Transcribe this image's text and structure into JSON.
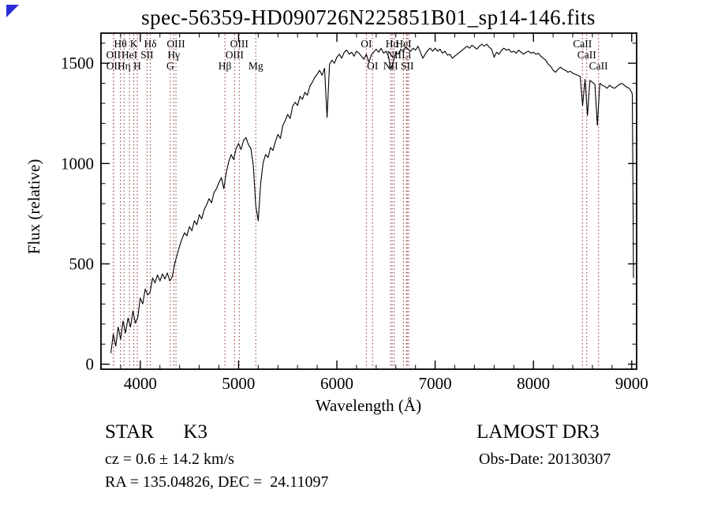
{
  "title": "spec-56359-HD090726N225851B01_sp14-146.fits",
  "corner_marker_color": "#2b2bd8",
  "footer": {
    "class_label": "STAR      K3",
    "cz_line": "cz = 0.6 ± 14.2 km/s",
    "radec_line": "RA = 135.04826, DEC =  24.11097",
    "survey": "LAMOST DR3",
    "obs_date": "Obs-Date: 20130307"
  },
  "chart_data": {
    "type": "line",
    "title": "spec-56359-HD090726N225851B01_sp14-146.fits",
    "xlabel": "Wavelength (Å)",
    "ylabel": "Flux (relative)",
    "xlim": [
      3600,
      9050
    ],
    "ylim": [
      -25,
      1650
    ],
    "x_major_ticks": [
      4000,
      5000,
      6000,
      7000,
      8000,
      9000
    ],
    "x_minor_step": 200,
    "y_major_ticks": [
      0,
      500,
      1000,
      1500
    ],
    "y_minor_step": 100,
    "grid": false,
    "legend": "none",
    "line_color": "#000000",
    "marker_line_color": "#944040",
    "marker_label_color": "#4a1616",
    "spectral_lines": [
      {
        "label": "OII",
        "wavelength": 3727,
        "row": 2
      },
      {
        "label": "OII",
        "wavelength": 3729,
        "row": 3
      },
      {
        "label": "Hθ",
        "wavelength": 3798,
        "row": 1
      },
      {
        "label": "Hη",
        "wavelength": 3835,
        "row": 3
      },
      {
        "label": "HeI",
        "wavelength": 3889,
        "row": 2
      },
      {
        "label": "K",
        "wavelength": 3934,
        "row": 1
      },
      {
        "label": "H",
        "wavelength": 3969,
        "row": 3
      },
      {
        "label": "SII",
        "wavelength": 4069,
        "row": 2
      },
      {
        "label": "Hδ",
        "wavelength": 4102,
        "row": 1
      },
      {
        "label": "G",
        "wavelength": 4305,
        "row": 3
      },
      {
        "label": "Hγ",
        "wavelength": 4340,
        "row": 2
      },
      {
        "label": "OIII",
        "wavelength": 4363,
        "row": 1
      },
      {
        "label": "Hβ",
        "wavelength": 4861,
        "row": 3
      },
      {
        "label": "OIII",
        "wavelength": 4959,
        "row": 2
      },
      {
        "label": "OIII",
        "wavelength": 5007,
        "row": 1
      },
      {
        "label": "Mg",
        "wavelength": 5175,
        "row": 3
      },
      {
        "label": "OI",
        "wavelength": 6300,
        "row": 1
      },
      {
        "label": "OI",
        "wavelength": 6363,
        "row": 3
      },
      {
        "label": "NII",
        "wavelength": 6548,
        "row": 3
      },
      {
        "label": "Hα",
        "wavelength": 6563,
        "row": 1
      },
      {
        "label": "NII",
        "wavelength": 6583,
        "row": 2
      },
      {
        "label": "HeI",
        "wavelength": 6678,
        "row": 1
      },
      {
        "label": "Li",
        "wavelength": 6708,
        "row": 2
      },
      {
        "label": "SII",
        "wavelength": 6716,
        "row": 3
      },
      {
        "label": "",
        "wavelength": 6731,
        "row": 3
      },
      {
        "label": "CaII",
        "wavelength": 8498,
        "row": 1
      },
      {
        "label": "CaII",
        "wavelength": 8542,
        "row": 2
      },
      {
        "label": "CaII",
        "wavelength": 8662,
        "row": 3
      }
    ],
    "series": [
      {
        "name": "flux",
        "x_start": 3700,
        "x_step": 25,
        "values": [
          55,
          150,
          90,
          185,
          125,
          215,
          155,
          230,
          185,
          265,
          205,
          235,
          330,
          300,
          375,
          345,
          360,
          430,
          405,
          445,
          415,
          450,
          425,
          455,
          415,
          435,
          500,
          545,
          590,
          625,
          655,
          640,
          685,
          665,
          715,
          695,
          745,
          725,
          770,
          795,
          825,
          805,
          855,
          875,
          905,
          930,
          875,
          955,
          1010,
          1045,
          1020,
          1075,
          1100,
          1070,
          1115,
          1130,
          1095,
          1075,
          990,
          790,
          715,
          905,
          1005,
          1045,
          1030,
          1080,
          1065,
          1110,
          1145,
          1125,
          1190,
          1215,
          1245,
          1225,
          1285,
          1305,
          1290,
          1335,
          1320,
          1355,
          1340,
          1385,
          1405,
          1430,
          1445,
          1465,
          1440,
          1475,
          1230,
          1495,
          1515,
          1500,
          1530,
          1545,
          1525,
          1555,
          1565,
          1545,
          1555,
          1535,
          1560,
          1550,
          1535,
          1520,
          1545,
          1505,
          1540,
          1555,
          1570,
          1555,
          1575,
          1550,
          1560,
          1535,
          1470,
          1510,
          1555,
          1545,
          1570,
          1560,
          1580,
          1570,
          1560,
          1575,
          1565,
          1585,
          1555,
          1525,
          1545,
          1565,
          1575,
          1560,
          1575,
          1560,
          1570,
          1550,
          1560,
          1540,
          1545,
          1525,
          1535,
          1545,
          1555,
          1565,
          1575,
          1585,
          1575,
          1590,
          1580,
          1570,
          1585,
          1595,
          1585,
          1595,
          1580,
          1570,
          1530,
          1555,
          1545,
          1565,
          1575,
          1565,
          1570,
          1555,
          1560,
          1550,
          1565,
          1555,
          1545,
          1555,
          1560,
          1550,
          1555,
          1545,
          1550,
          1535,
          1525,
          1515,
          1495,
          1485,
          1465,
          1455,
          1470,
          1480,
          1470,
          1465,
          1455,
          1460,
          1450,
          1445,
          1440,
          1435,
          1290,
          1420,
          1240,
          1415,
          1405,
          1395,
          1190,
          1400,
          1390,
          1385,
          1375,
          1390,
          1380,
          1375,
          1385,
          1395,
          1400,
          1390,
          1380,
          1375,
          1355
        ],
        "tail": [
          [
            9006,
            1345
          ],
          [
            9012,
            900
          ],
          [
            9018,
            430
          ]
        ]
      }
    ]
  }
}
